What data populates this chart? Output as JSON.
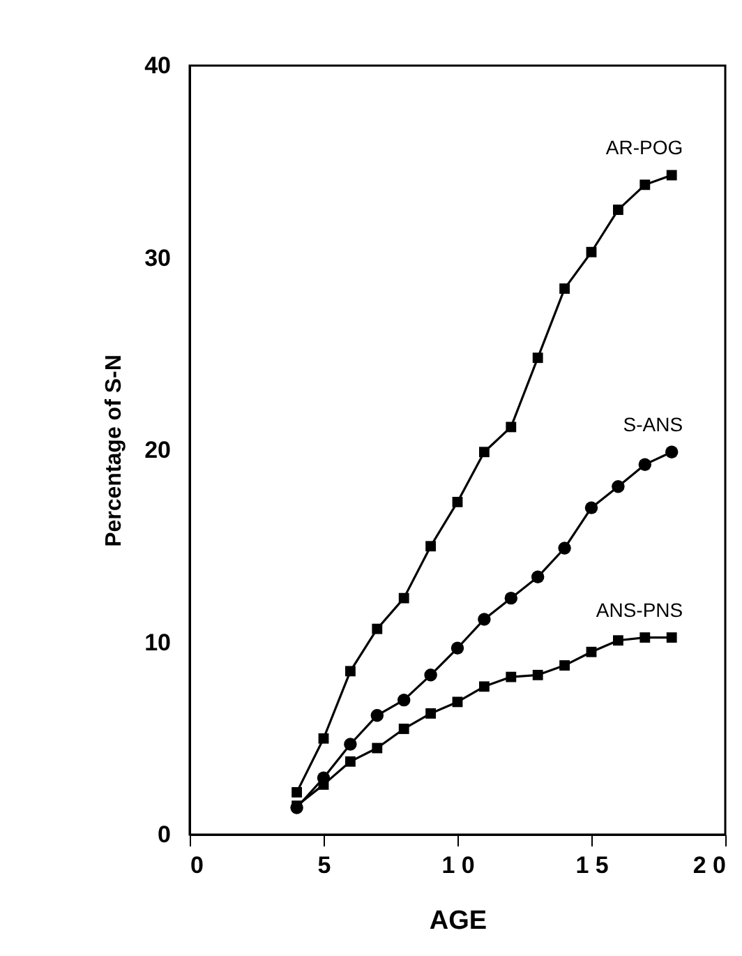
{
  "chart_data": {
    "type": "line",
    "xlabel": "AGE",
    "ylabel": "Percentage of S-N",
    "x": [
      4,
      5,
      6,
      7,
      8,
      9,
      10,
      11,
      12,
      13,
      14,
      15,
      16,
      17,
      18
    ],
    "series": [
      {
        "name": "AR-POG",
        "color": "#000000",
        "marker": "square",
        "values": [
          2.2,
          5.0,
          8.5,
          10.7,
          12.3,
          15.0,
          17.3,
          19.9,
          21.2,
          24.8,
          28.4,
          30.3,
          32.5,
          33.8,
          34.3
        ]
      },
      {
        "name": "S-ANS",
        "color": "#000000",
        "marker": "circle",
        "values": [
          1.4,
          2.95,
          4.7,
          6.2,
          7.0,
          8.3,
          9.7,
          11.2,
          12.3,
          13.4,
          14.9,
          17.0,
          18.1,
          19.25,
          19.9
        ]
      },
      {
        "name": "ANS-PNS",
        "color": "#000000",
        "marker": "square",
        "values": [
          1.5,
          2.6,
          3.8,
          4.5,
          5.5,
          6.3,
          6.9,
          7.7,
          8.2,
          8.3,
          8.8,
          9.5,
          10.1,
          10.25,
          10.25
        ]
      }
    ],
    "xlim": [
      0,
      20
    ],
    "xticks": [
      0,
      5,
      {
        "value": 10,
        "label": "1 0"
      },
      {
        "value": 15,
        "label": "1 5"
      },
      {
        "value": 20,
        "label": "2 0"
      }
    ],
    "ylim": [
      0,
      40
    ],
    "yticks": [
      0,
      10,
      20,
      30,
      40
    ],
    "grid": false,
    "line_style": "solid"
  }
}
